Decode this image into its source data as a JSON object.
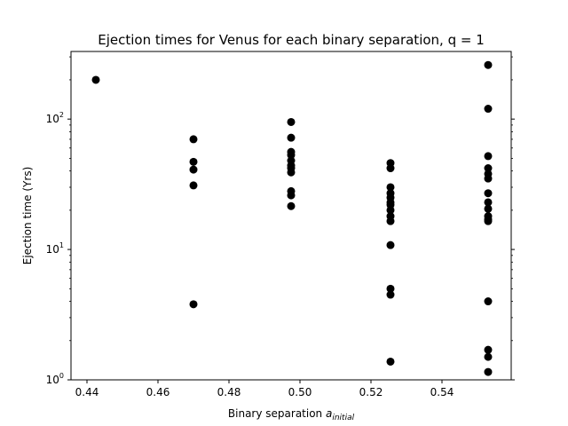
{
  "chart_data": {
    "type": "scatter",
    "title": "Ejection times for Venus for each binary separation, q = 1",
    "xlabel_prefix": "Binary separation ",
    "xlabel_var": "a",
    "xlabel_subscript": "initial",
    "ylabel": "Ejection time (Yrs)",
    "xlim": [
      0.4355,
      0.5595
    ],
    "ylim": [
      1,
      330
    ],
    "yscale": "log",
    "grid": false,
    "marker_color": "#000000",
    "xticks": [
      {
        "value": 0.44,
        "label": "0.44"
      },
      {
        "value": 0.46,
        "label": "0.46"
      },
      {
        "value": 0.48,
        "label": "0.48"
      },
      {
        "value": 0.5,
        "label": "0.50"
      },
      {
        "value": 0.52,
        "label": "0.52"
      },
      {
        "value": 0.54,
        "label": "0.54"
      }
    ],
    "yticks": [
      {
        "value": 1,
        "base": "10",
        "exp": "0"
      },
      {
        "value": 10,
        "base": "10",
        "exp": "1"
      },
      {
        "value": 100,
        "base": "10",
        "exp": "2"
      }
    ],
    "groups": [
      {
        "x": 0.4425,
        "y": [
          200
        ]
      },
      {
        "x": 0.47,
        "y": [
          70,
          47,
          41,
          31,
          3.8
        ]
      },
      {
        "x": 0.4975,
        "y": [
          95,
          72,
          56,
          53,
          48,
          44,
          42,
          39,
          28,
          26,
          21.5
        ]
      },
      {
        "x": 0.5255,
        "y": [
          46,
          42,
          30,
          27,
          25,
          23,
          22,
          20,
          18,
          16.5,
          10.8,
          5,
          4.5,
          1.38
        ]
      },
      {
        "x": 0.553,
        "y": [
          260,
          120,
          52,
          42,
          38,
          35,
          27,
          23,
          20.5,
          18,
          17,
          16.5,
          4,
          1.7,
          1.5,
          1.15
        ]
      }
    ]
  }
}
